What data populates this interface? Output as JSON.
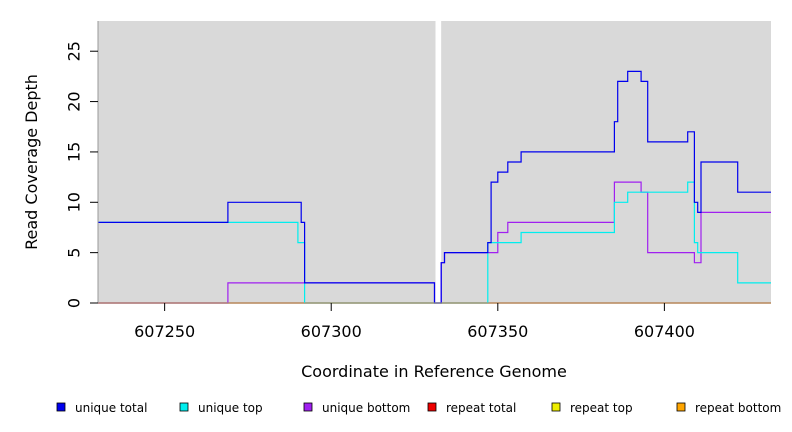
{
  "chart_data": {
    "type": "line",
    "xlabel": "Coordinate in Reference Genome",
    "ylabel": "Read Coverage Depth",
    "xlim": [
      607230,
      607432
    ],
    "ylim": [
      0,
      28
    ],
    "x_ticks": [
      607250,
      607300,
      607350,
      607400
    ],
    "y_ticks": [
      0,
      5,
      10,
      15,
      20,
      25
    ],
    "gap": [
      607331,
      607333
    ],
    "grid": false,
    "legend_position": "bottom",
    "background": "#d9d9d9",
    "series": [
      {
        "name": "unique total",
        "color": "#0000ee",
        "steps": [
          [
            607230,
            8
          ],
          [
            607269,
            10
          ],
          [
            607291,
            8
          ],
          [
            607292,
            2
          ],
          [
            607331,
            0
          ],
          [
            607333,
            4
          ],
          [
            607334,
            5
          ],
          [
            607347,
            6
          ],
          [
            607348,
            12
          ],
          [
            607350,
            13
          ],
          [
            607353,
            14
          ],
          [
            607357,
            15
          ],
          [
            607385,
            18
          ],
          [
            607386,
            22
          ],
          [
            607389,
            23
          ],
          [
            607393,
            22
          ],
          [
            607395,
            16
          ],
          [
            607407,
            17
          ],
          [
            607409,
            10
          ],
          [
            607410,
            9
          ],
          [
            607411,
            14
          ],
          [
            607422,
            11
          ],
          [
            607432,
            11
          ]
        ]
      },
      {
        "name": "unique top",
        "color": "#00eeee",
        "steps": [
          [
            607230,
            8
          ],
          [
            607290,
            6
          ],
          [
            607292,
            0
          ],
          [
            607347,
            6
          ],
          [
            607357,
            7
          ],
          [
            607385,
            10
          ],
          [
            607389,
            11
          ],
          [
            607407,
            12
          ],
          [
            607409,
            6
          ],
          [
            607410,
            5
          ],
          [
            607422,
            2
          ],
          [
            607432,
            2
          ]
        ]
      },
      {
        "name": "unique bottom",
        "color": "#a020f0",
        "steps": [
          [
            607230,
            0
          ],
          [
            607269,
            2
          ],
          [
            607292,
            2
          ],
          [
            607331,
            0
          ],
          [
            607333,
            4
          ],
          [
            607334,
            5
          ],
          [
            607350,
            7
          ],
          [
            607353,
            8
          ],
          [
            607385,
            12
          ],
          [
            607393,
            11
          ],
          [
            607395,
            5
          ],
          [
            607409,
            4
          ],
          [
            607411,
            9
          ],
          [
            607432,
            9
          ]
        ]
      },
      {
        "name": "repeat total",
        "color": "#ee0000",
        "steps": [
          [
            607230,
            0
          ],
          [
            607432,
            0
          ]
        ]
      },
      {
        "name": "repeat top",
        "color": "#eeee00",
        "steps": [
          [
            607230,
            0
          ],
          [
            607432,
            0
          ]
        ]
      },
      {
        "name": "repeat bottom",
        "color": "#ffa500",
        "steps": [
          [
            607230,
            0
          ],
          [
            607432,
            0
          ]
        ]
      }
    ]
  }
}
